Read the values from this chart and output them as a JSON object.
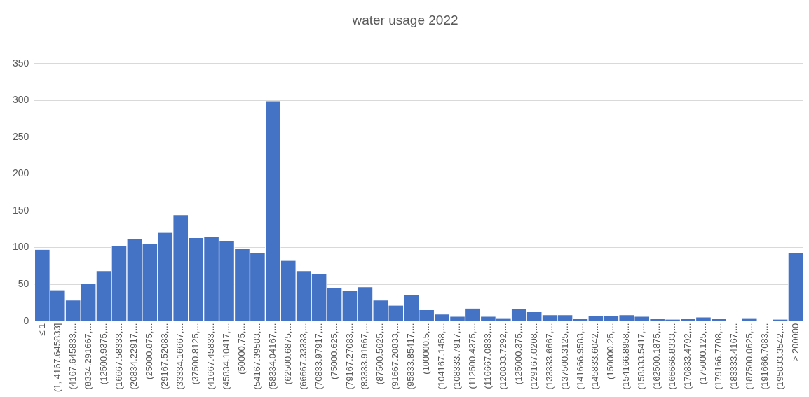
{
  "chart_data": {
    "type": "bar",
    "title": "water usage 2022",
    "categories": [
      "≤ 1",
      "(1, 4167.645833]",
      "(4167.645833,...",
      "(8334.291667,...",
      "(12500.9375,...",
      "(16667.58333,...",
      "(20834.22917,...",
      "(25000.875,...",
      "(29167.52083,...",
      "(33334.16667,...",
      "(37500.8125,...",
      "(41667.45833,...",
      "(45834.10417,...",
      "(50000.75,...",
      "(54167.39583,...",
      "(58334.04167,...",
      "(62500.6875,...",
      "(66667.33333,...",
      "(70833.97917,...",
      "(75000.625,...",
      "(79167.27083,...",
      "(83333.91667,...",
      "(87500.5625,...",
      "(91667.20833,...",
      "(95833.85417,...",
      "(100000.5,...",
      "(104167.1458,...",
      "(108333.7917,...",
      "(112500.4375,...",
      "(116667.0833,...",
      "(120833.7292,...",
      "(125000.375,...",
      "(129167.0208,...",
      "(133333.6667,...",
      "(137500.3125,...",
      "(141666.9583,...",
      "(145833.6042,...",
      "(150000.25,...",
      "(154166.8958,...",
      "(158333.5417,...",
      "(162500.1875,...",
      "(166666.8333,...",
      "(170833.4792,...",
      "(175000.125,...",
      "(179166.7708,...",
      "(183333.4167,...",
      "(187500.0625,...",
      "(191666.7083,...",
      "(195833.3542,...",
      "> 200000"
    ],
    "values": [
      97,
      42,
      28,
      51,
      68,
      102,
      111,
      105,
      120,
      144,
      113,
      114,
      109,
      98,
      93,
      299,
      82,
      68,
      64,
      45,
      41,
      46,
      28,
      21,
      35,
      15,
      9,
      6,
      17,
      6,
      4,
      16,
      13,
      8,
      8,
      3,
      7,
      7,
      8,
      6,
      3,
      2,
      3,
      5,
      3,
      0,
      4,
      0,
      2,
      92
    ],
    "color": "#4472c4",
    "ylim": [
      0,
      350
    ],
    "yticks": [
      0,
      50,
      100,
      150,
      200,
      250,
      300,
      350
    ],
    "grid": "y",
    "legend": false
  }
}
